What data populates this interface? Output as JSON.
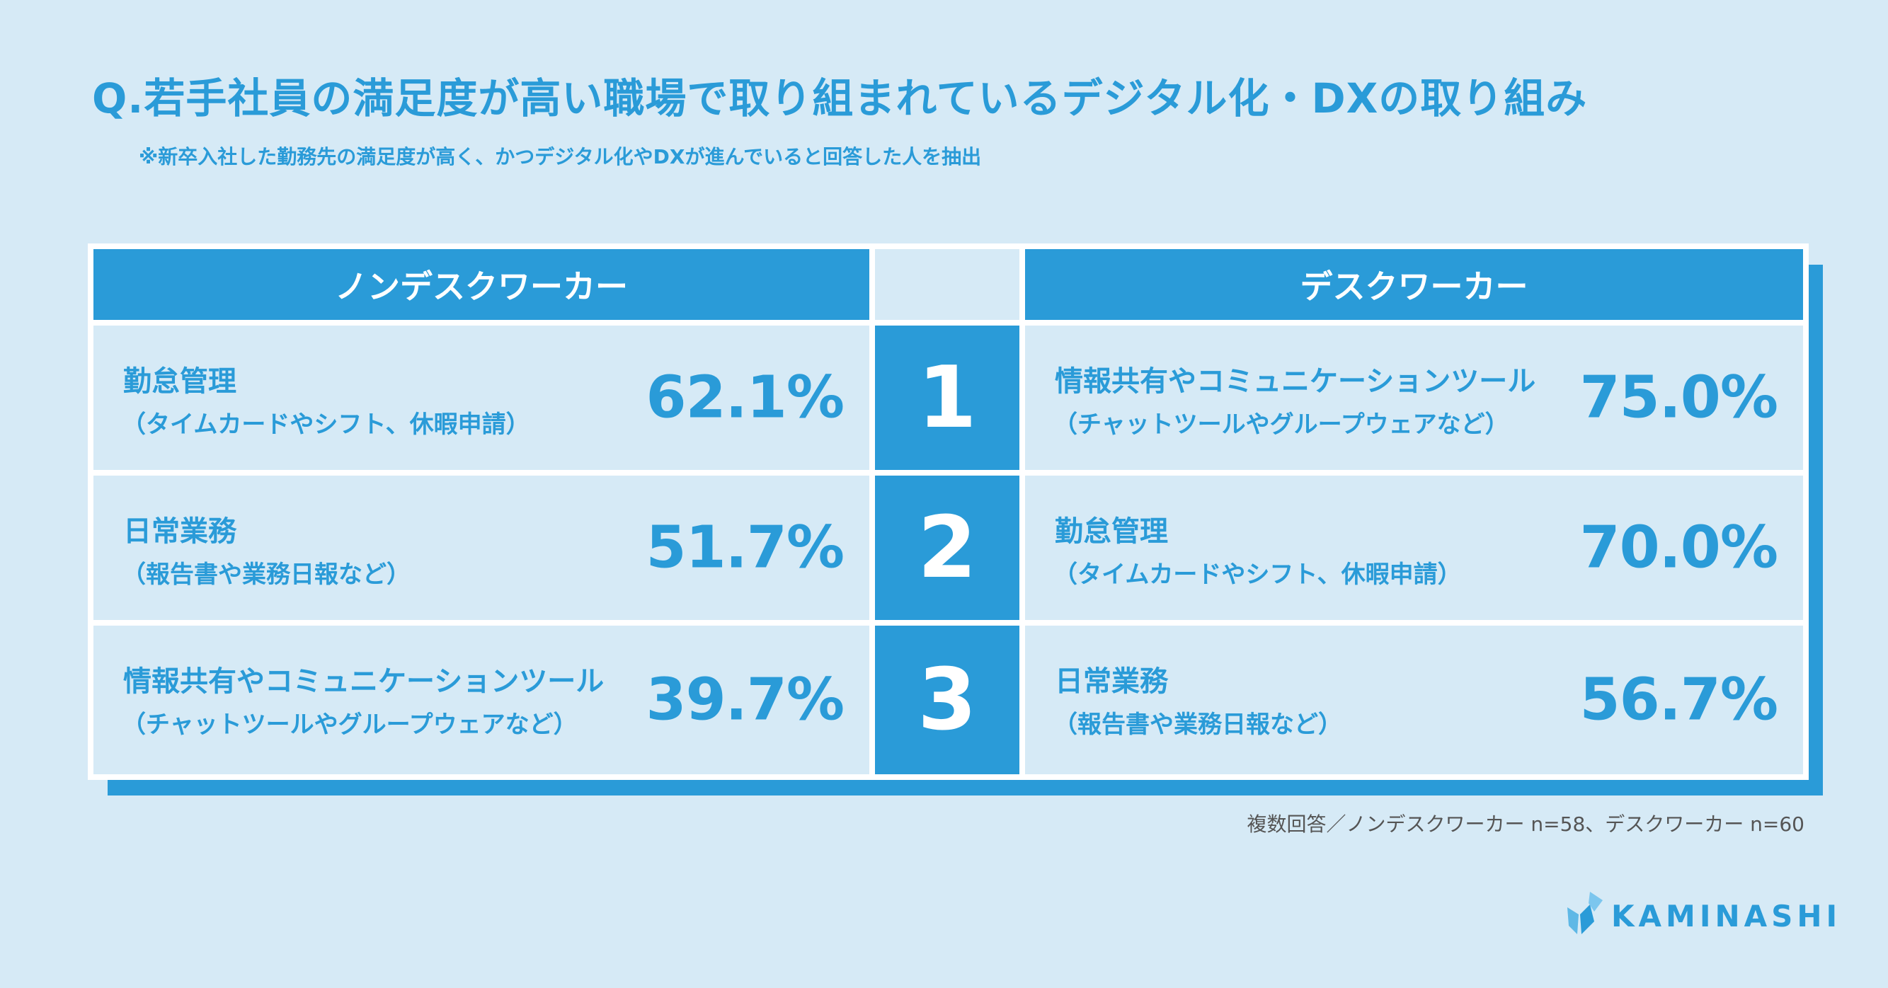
{
  "title": "Q.若手社員の満足度が高い職場で取り組まれているデジタル化・DXの取り組み",
  "subtitle": "※新卒入社した勤務先の満足度が高く、かつデジタル化やDXが進んでいると回答した人を抽出",
  "headers": {
    "left": "ノンデスクワーカー",
    "right": "デスクワーカー"
  },
  "ranks": [
    "1",
    "2",
    "3"
  ],
  "non_desk": [
    {
      "name": "勤怠管理",
      "note": "（タイムカードやシフト、休暇申請）",
      "pct": "62.1%"
    },
    {
      "name": "日常業務",
      "note": "（報告書や業務日報など）",
      "pct": "51.7%"
    },
    {
      "name": "情報共有やコミュニケーションツール",
      "note": "（チャットツールやグループウェアなど）",
      "pct": "39.7%"
    }
  ],
  "desk": [
    {
      "name": "情報共有やコミュニケーションツール",
      "note": "（チャットツールやグループウェアなど）",
      "pct": "75.0%"
    },
    {
      "name": "勤怠管理",
      "note": "（タイムカードやシフト、休暇申請）",
      "pct": "70.0%"
    },
    {
      "name": "日常業務",
      "note": "（報告書や業務日報など）",
      "pct": "56.7%"
    }
  ],
  "footnote": "複数回答／ノンデスクワーカー n=58、デスクワーカー n=60",
  "logo": {
    "text": "KAMINASHI",
    "icon": "kaminashi-logo-icon"
  },
  "colors": {
    "accent": "#2a9bd8",
    "background": "#d6eaf6",
    "white": "#ffffff"
  },
  "chart_data": {
    "type": "table",
    "title": "Q.若手社員の満足度が高い職場で取り組まれているデジタル化・DXの取り組み",
    "columns": [
      "ノンデスクワーカー",
      "",
      "デスクワーカー"
    ],
    "series": [
      {
        "name": "ノンデスクワーカー",
        "categories": [
          "勤怠管理",
          "日常業務",
          "情報共有やコミュニケーションツール"
        ],
        "values": [
          62.1,
          51.7,
          39.7
        ]
      },
      {
        "name": "デスクワーカー",
        "categories": [
          "情報共有やコミュニケーションツール",
          "勤怠管理",
          "日常業務"
        ],
        "values": [
          75.0,
          70.0,
          56.7
        ]
      }
    ]
  }
}
